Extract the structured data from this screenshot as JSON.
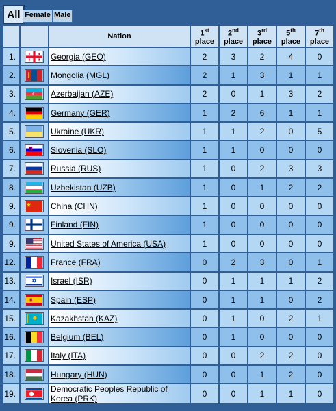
{
  "tabs": {
    "all": "All",
    "female": "Female",
    "male": "Male"
  },
  "header": {
    "nation": "Nation",
    "places": [
      {
        "num": "1",
        "suffix": "st",
        "word": "place"
      },
      {
        "num": "2",
        "suffix": "nd",
        "word": "place"
      },
      {
        "num": "3",
        "suffix": "rd",
        "word": "place"
      },
      {
        "num": "5",
        "suffix": "th",
        "word": "place"
      },
      {
        "num": "7",
        "suffix": "th",
        "word": "place"
      }
    ]
  },
  "rows": [
    {
      "rank": "1.",
      "flag": "GEO",
      "nation": "Georgia (GEO)",
      "p1": "2",
      "p2": "3",
      "p3": "2",
      "p5": "4",
      "p7": "0"
    },
    {
      "rank": "2.",
      "flag": "MGL",
      "nation": "Mongolia (MGL)",
      "p1": "2",
      "p2": "1",
      "p3": "3",
      "p5": "1",
      "p7": "1"
    },
    {
      "rank": "3.",
      "flag": "AZE",
      "nation": "Azerbaijan (AZE)",
      "p1": "2",
      "p2": "0",
      "p3": "1",
      "p5": "3",
      "p7": "2"
    },
    {
      "rank": "4.",
      "flag": "GER",
      "nation": "Germany (GER)",
      "p1": "1",
      "p2": "2",
      "p3": "6",
      "p5": "1",
      "p7": "1"
    },
    {
      "rank": "5.",
      "flag": "UKR",
      "nation": "Ukraine (UKR)",
      "p1": "1",
      "p2": "1",
      "p3": "2",
      "p5": "0",
      "p7": "5"
    },
    {
      "rank": "6.",
      "flag": "SLO",
      "nation": "Slovenia (SLO)",
      "p1": "1",
      "p2": "1",
      "p3": "0",
      "p5": "0",
      "p7": "0"
    },
    {
      "rank": "7.",
      "flag": "RUS",
      "nation": "Russia (RUS)",
      "p1": "1",
      "p2": "0",
      "p3": "2",
      "p5": "3",
      "p7": "3"
    },
    {
      "rank": "8.",
      "flag": "UZB",
      "nation": "Uzbekistan (UZB)",
      "p1": "1",
      "p2": "0",
      "p3": "1",
      "p5": "2",
      "p7": "2"
    },
    {
      "rank": "9.",
      "flag": "CHN",
      "nation": "China (CHN)",
      "p1": "1",
      "p2": "0",
      "p3": "0",
      "p5": "0",
      "p7": "0"
    },
    {
      "rank": "9.",
      "flag": "FIN",
      "nation": "Finland (FIN)",
      "p1": "1",
      "p2": "0",
      "p3": "0",
      "p5": "0",
      "p7": "0"
    },
    {
      "rank": "9.",
      "flag": "USA",
      "nation": "United States of America (USA)",
      "p1": "1",
      "p2": "0",
      "p3": "0",
      "p5": "0",
      "p7": "0"
    },
    {
      "rank": "12.",
      "flag": "FRA",
      "nation": "France (FRA)",
      "p1": "0",
      "p2": "2",
      "p3": "3",
      "p5": "0",
      "p7": "1"
    },
    {
      "rank": "13.",
      "flag": "ISR",
      "nation": "Israel (ISR)",
      "p1": "0",
      "p2": "1",
      "p3": "1",
      "p5": "1",
      "p7": "2"
    },
    {
      "rank": "14.",
      "flag": "ESP",
      "nation": "Spain (ESP)",
      "p1": "0",
      "p2": "1",
      "p3": "1",
      "p5": "0",
      "p7": "2"
    },
    {
      "rank": "15.",
      "flag": "KAZ",
      "nation": "Kazakhstan (KAZ)",
      "p1": "0",
      "p2": "1",
      "p3": "0",
      "p5": "2",
      "p7": "1"
    },
    {
      "rank": "16.",
      "flag": "BEL",
      "nation": "Belgium (BEL)",
      "p1": "0",
      "p2": "1",
      "p3": "0",
      "p5": "0",
      "p7": "0"
    },
    {
      "rank": "17.",
      "flag": "ITA",
      "nation": "Italy (ITA)",
      "p1": "0",
      "p2": "0",
      "p3": "2",
      "p5": "2",
      "p7": "0"
    },
    {
      "rank": "18.",
      "flag": "HUN",
      "nation": "Hungary (HUN)",
      "p1": "0",
      "p2": "0",
      "p3": "1",
      "p5": "2",
      "p7": "0"
    },
    {
      "rank": "19.",
      "flag": "PRK",
      "nation": "Democratic Peoples Republic of Korea (PRK)",
      "p1": "0",
      "p2": "0",
      "p3": "1",
      "p5": "1",
      "p7": "0"
    }
  ]
}
